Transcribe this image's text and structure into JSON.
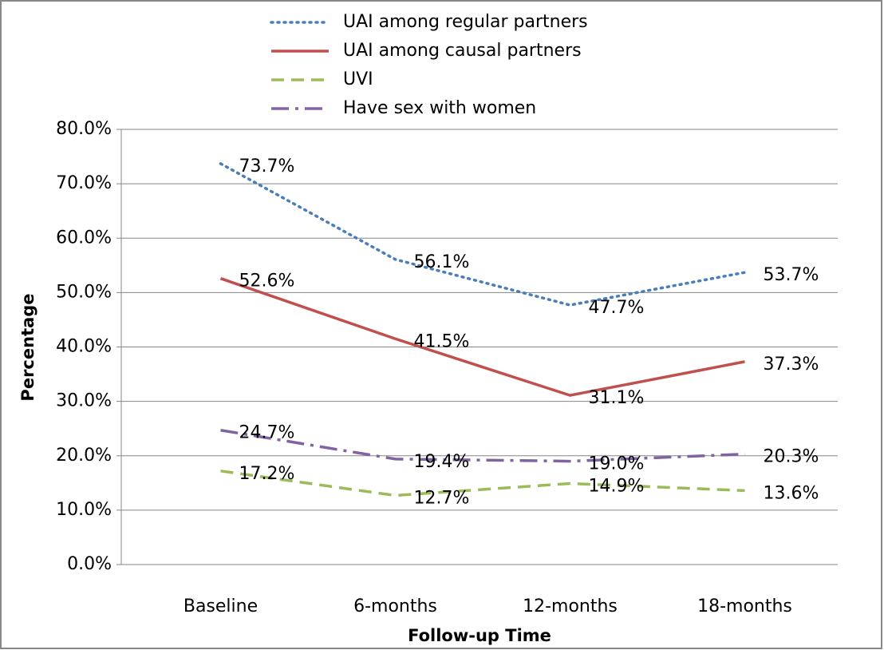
{
  "chart_data": {
    "type": "line",
    "categories": [
      "Baseline",
      "6-months",
      "12-months",
      "18-months"
    ],
    "series": [
      {
        "name": "UAI among regular partners",
        "color": "#4a7ebb",
        "style": "dotted",
        "values": [
          73.7,
          56.1,
          47.7,
          53.7
        ],
        "value_labels": [
          "73.7%",
          "56.1%",
          "47.7%",
          "53.7%"
        ]
      },
      {
        "name": "UAI among causal partners",
        "color": "#c0504d",
        "style": "solid",
        "values": [
          52.6,
          41.5,
          31.1,
          37.3
        ],
        "value_labels": [
          "52.6%",
          "41.5%",
          "31.1%",
          "37.3%"
        ]
      },
      {
        "name": "UVI",
        "color": "#9bbb59",
        "style": "dashed",
        "values": [
          17.2,
          12.7,
          14.9,
          13.6
        ],
        "value_labels": [
          "17.2%",
          "12.7%",
          "14.9%",
          "13.6%"
        ]
      },
      {
        "name": "Have sex with women",
        "color": "#8064a2",
        "style": "dashdot",
        "values": [
          24.7,
          19.4,
          19.0,
          20.3
        ],
        "value_labels": [
          "24.7%",
          "19.4%",
          "19.0%",
          "20.3%"
        ]
      }
    ],
    "ylim": [
      0,
      80
    ],
    "yticks": [
      {
        "value": 0,
        "label": "0.0%"
      },
      {
        "value": 10,
        "label": "10.0%"
      },
      {
        "value": 20,
        "label": "20.0%"
      },
      {
        "value": 30,
        "label": "30.0%"
      },
      {
        "value": 40,
        "label": "40.0%"
      },
      {
        "value": 50,
        "label": "50.0%"
      },
      {
        "value": 60,
        "label": "60.0%"
      },
      {
        "value": 70,
        "label": "70.0%"
      },
      {
        "value": 80,
        "label": "80.0%"
      }
    ],
    "grid": true,
    "legend": "top",
    "xlabel": "Follow-up Time",
    "ylabel": "Percentage"
  }
}
